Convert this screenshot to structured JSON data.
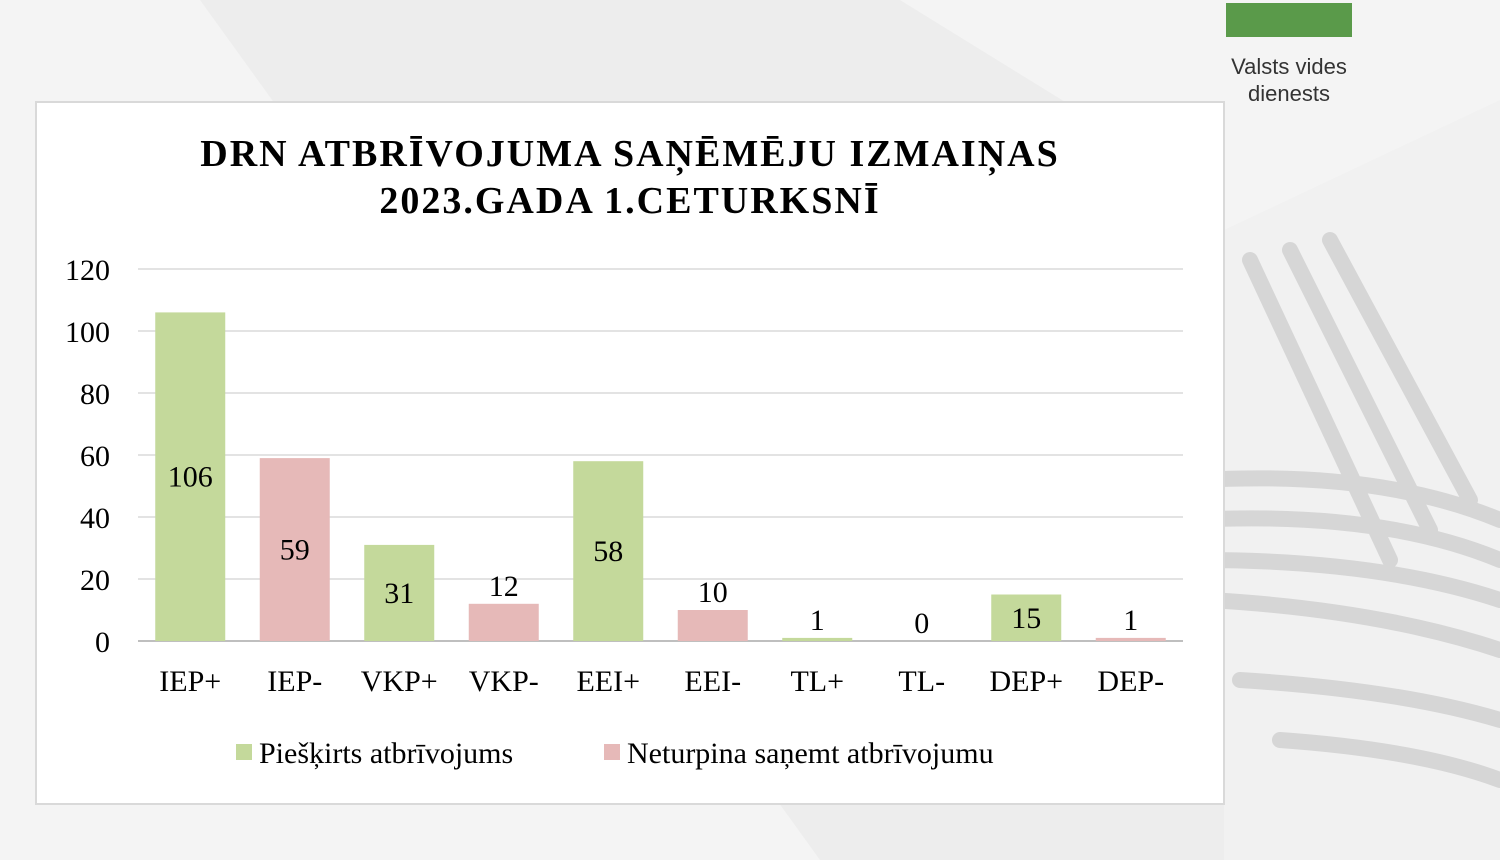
{
  "logo": {
    "lines": [
      "Valsts vides",
      "dienests"
    ]
  },
  "chart_data": {
    "type": "bar",
    "title": [
      "DRN ATBRĪVOJUMA SAŅĒMĒJU IZMAIŅAS",
      "2023.GADA 1.CETURKSNĪ"
    ],
    "categories": [
      "IEP+",
      "IEP-",
      "VKP+",
      "VKP-",
      "EEI+",
      "EEI-",
      "TL+",
      "TL-",
      "DEP+",
      "DEP-"
    ],
    "series": [
      {
        "name": "Piešķirts atbrīvojums",
        "color": "#c4d99b",
        "values": [
          106,
          null,
          31,
          null,
          58,
          null,
          1,
          null,
          15,
          null
        ]
      },
      {
        "name": "Neturpina saņemt atbrīvojumu",
        "color": "#e6b9b8",
        "values": [
          null,
          59,
          null,
          12,
          null,
          10,
          null,
          0,
          null,
          1
        ]
      }
    ],
    "ylim": [
      0,
      120
    ],
    "yticks": [
      0,
      20,
      40,
      60,
      80,
      100,
      120
    ],
    "grid": true,
    "legend": "bottom"
  }
}
